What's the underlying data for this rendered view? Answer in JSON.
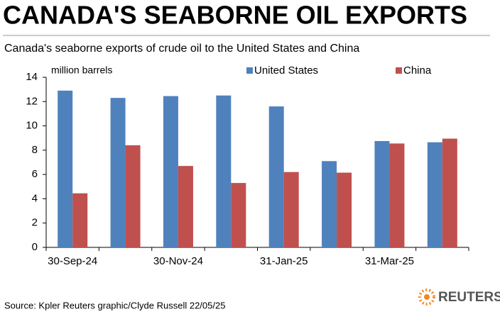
{
  "chart_data": {
    "type": "bar",
    "title": "CANADA'S SEABORNE OIL EXPORTS",
    "subtitle": "Canada's seaborne exports of crude oil to the United States and China",
    "y_label": "million barrels",
    "categories": [
      "30-Sep-24",
      null,
      "30-Nov-24",
      null,
      "31-Jan-25",
      null,
      "31-Mar-25",
      null
    ],
    "series": [
      {
        "name": "United States",
        "color": "#4f81bd",
        "values": [
          12.9,
          12.3,
          12.45,
          12.5,
          11.6,
          7.1,
          8.75,
          8.65
        ]
      },
      {
        "name": "China",
        "color": "#c0504d",
        "values": [
          4.45,
          8.4,
          6.7,
          5.3,
          6.2,
          6.15,
          8.55,
          8.95
        ]
      }
    ],
    "ylim": [
      0,
      14
    ],
    "yticks": [
      0,
      2,
      4,
      6,
      8,
      10,
      12,
      14
    ],
    "grid": false,
    "legend": "top",
    "source": "Source: Kpler    Reuters graphic/Clyde Russell 22/05/25",
    "logo": "REUTERS"
  }
}
